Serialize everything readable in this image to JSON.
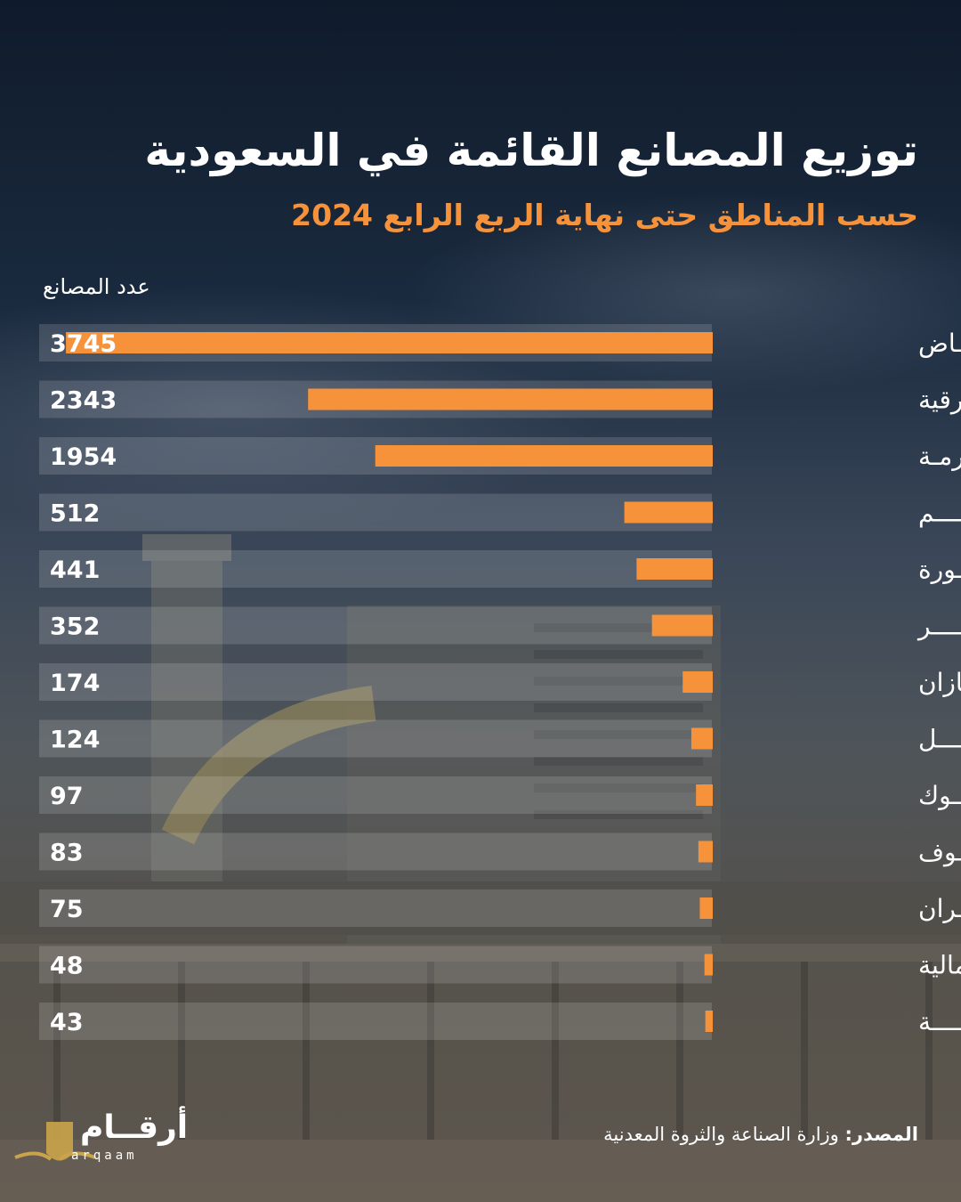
{
  "header": {
    "title": "توزيع المصانع القائمة في السعودية",
    "subtitle": "حسب المناطق حتى نهاية الربع الرابع 2024"
  },
  "colors": {
    "accent": "#f6923a",
    "row_band": "#ffffff"
  },
  "chart_data": {
    "type": "bar",
    "orientation": "horizontal",
    "value_label": "عدد المصانع",
    "categories": [
      "الريـــــاض",
      "المنطقة الشرقية",
      "مــكـــة المكرمـة",
      "القصيـــــــم",
      "المدينـــة المنــورة",
      "عسيـــــــــر",
      "جـــــازان",
      "حائـــــــــل",
      "تبـــــــوك",
      "الجـــــوف",
      "نجـــــران",
      "الحدود الشمالية",
      "البـاحـــــة"
    ],
    "values": [
      3745,
      2343,
      1954,
      512,
      441,
      352,
      174,
      124,
      97,
      83,
      75,
      48,
      43
    ],
    "xlim": [
      0,
      3900
    ],
    "grid": false,
    "legend": "none"
  },
  "source": {
    "label": "المصدر:",
    "text": "وزارة الصناعة والثروة المعدنية"
  },
  "logo": {
    "text": "أرقــام",
    "subtext": "arqaam"
  }
}
